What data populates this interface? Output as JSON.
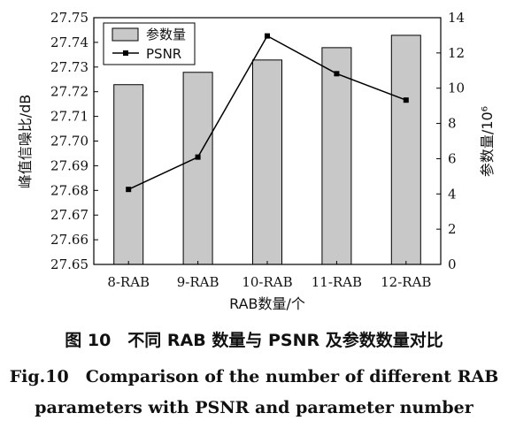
{
  "chart_data": {
    "type": "bar",
    "categories": [
      "8-RAB",
      "9-RAB",
      "10-RAB",
      "11-RAB",
      "12-RAB"
    ],
    "xlabel": "RAB数量/个",
    "ylabel_left": "峰值信噪比/dB",
    "ylabel_right": "参数量/10⁶",
    "ylim_left": [
      27.65,
      27.75
    ],
    "left_ticks": [
      "27.65",
      "27.66",
      "27.67",
      "27.68",
      "27.69",
      "27.70",
      "27.71",
      "27.72",
      "27.73",
      "27.74",
      "27.75"
    ],
    "ylim_right": [
      0,
      14
    ],
    "right_ticks": [
      "0",
      "2",
      "4",
      "6",
      "8",
      "10",
      "12",
      "14"
    ],
    "series": [
      {
        "name": "参数量",
        "kind": "bar",
        "axis": "right",
        "color": "#c8c8c8",
        "values": [
          10.2,
          10.9,
          11.6,
          12.3,
          13.0
        ]
      },
      {
        "name": "PSNR",
        "kind": "line",
        "axis": "left",
        "color": "#000000",
        "values": [
          27.6804,
          27.6935,
          27.7426,
          27.7273,
          27.7166
        ]
      }
    ],
    "legend": {
      "position": "top-left"
    },
    "grid": false
  },
  "caption": {
    "cn": "图 10　不同 RAB 数量与 PSNR 及参数数量对比",
    "en_line1": "Fig.10　Comparison of the number of different RAB",
    "en_line2": "parameters with PSNR and parameter number"
  }
}
